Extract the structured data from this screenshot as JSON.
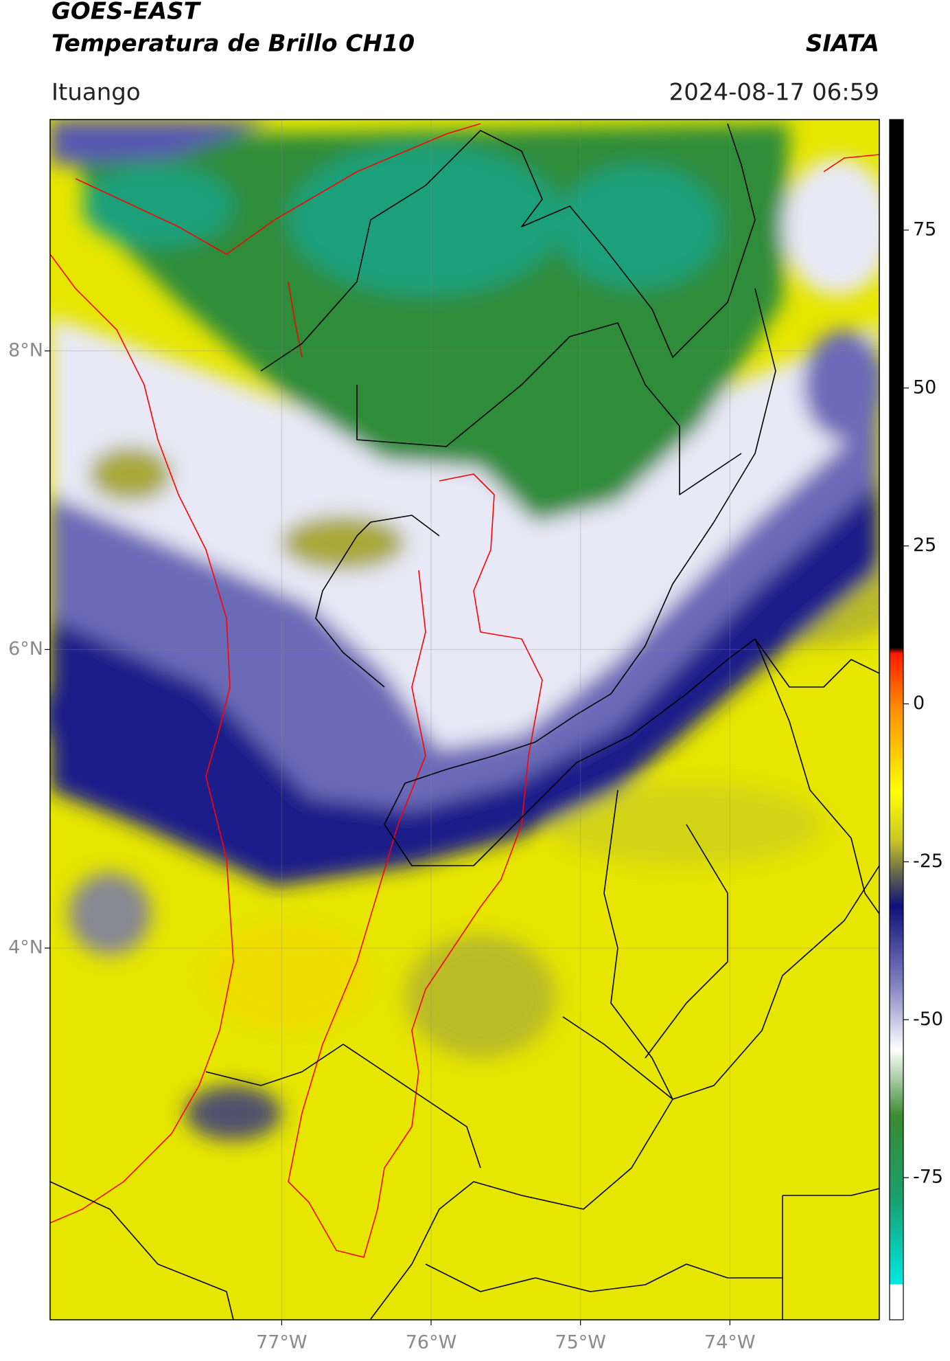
{
  "chart_data": {
    "type": "map",
    "title": "GOES-EAST",
    "subtitle": "Temperatura de Brillo CH10",
    "source": "SIATA",
    "location": "Ituango",
    "datetime": "2024-08-17 06:59",
    "xlim": [
      -78.55,
      -73.0
    ],
    "ylim": [
      1.51,
      9.55
    ],
    "xticks": [
      {
        "value": -77,
        "label": "77°W"
      },
      {
        "value": -76,
        "label": "76°W"
      },
      {
        "value": -75,
        "label": "75°W"
      },
      {
        "value": -74,
        "label": "74°W"
      }
    ],
    "yticks": [
      {
        "value": 8,
        "label": "8°N"
      },
      {
        "value": 6,
        "label": "6°N"
      },
      {
        "value": 4,
        "label": "4°N"
      }
    ],
    "grid": true,
    "colorbar": {
      "lim": [
        -97.5,
        92.5
      ],
      "ticks": [
        75,
        50,
        25,
        0,
        -25,
        -50,
        -75
      ]
    }
  }
}
